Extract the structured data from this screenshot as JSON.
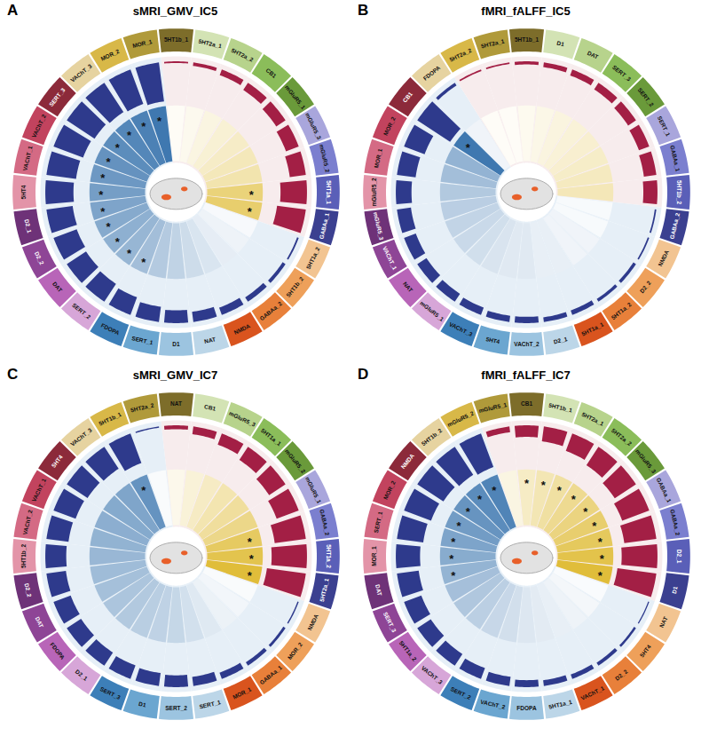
{
  "chart_data": [
    {
      "type": "radial_bar",
      "panel": "A",
      "title": "sMRI_GMV_IC5",
      "categories": [
        "5HT1b_1",
        "5HT2a_1",
        "5HT2a_2",
        "CB1",
        "mGluR5_1",
        "mGluR5_3",
        "mGluR5_2",
        "5HT1a_1",
        "GABAa_1",
        "5HT1a_2",
        "5HT1b_2",
        "GABAa_2",
        "NMDA",
        "NAT",
        "D1",
        "SERT_1",
        "FDOPA",
        "SERT_2",
        "DAT",
        "D2_2",
        "D2_1",
        "5HT4",
        "VAChT_1",
        "VAChT_2",
        "SERT_3",
        "VAChT_3",
        "MOR_2",
        "MOR_1"
      ],
      "values": [
        0.02,
        0.04,
        0.07,
        0.1,
        0.13,
        0.16,
        0.19,
        0.31,
        0.34,
        -0.02,
        -0.04,
        -0.06,
        -0.09,
        -0.12,
        -0.15,
        -0.18,
        -0.22,
        -0.25,
        -0.27,
        -0.29,
        -0.31,
        -0.33,
        -0.35,
        -0.37,
        -0.39,
        -0.41,
        -0.43,
        -0.46
      ],
      "significant": [
        false,
        false,
        false,
        false,
        false,
        false,
        false,
        true,
        true,
        false,
        false,
        false,
        false,
        false,
        false,
        false,
        true,
        true,
        true,
        true,
        true,
        true,
        true,
        true,
        true,
        true,
        true,
        true
      ],
      "significance_label": "*",
      "colors": [
        "#7d6d2a",
        "#d3e3b4",
        "#b7d38c",
        "#8bbd5a",
        "#6a9a3a",
        "#a9a6dc",
        "#7b7fcf",
        "#5a5fb8",
        "#3b4090",
        "#f2c491",
        "#eea05a",
        "#e8803a",
        "#d9541e",
        "#bcd6e8",
        "#9cc4e0",
        "#6ba6d0",
        "#3d7fb8",
        "#d7a6d8",
        "#b865b8",
        "#8e4596",
        "#6e3278",
        "#e394a8",
        "#d46a84",
        "#c2435e",
        "#8c2a3a",
        "#e6d3a0",
        "#d8b848",
        "#b09a3a"
      ]
    },
    {
      "type": "radial_bar",
      "panel": "B",
      "title": "fMRI_fALFF_IC5",
      "categories": [
        "5HT1b_1",
        "D1",
        "DAT",
        "SERT_3",
        "SERT_2",
        "SERT_1",
        "GABAa_1",
        "5HT1b_2",
        "GABAa_2",
        "NMDA",
        "D2_2",
        "5HT1a_2",
        "5HT1a_1",
        "D2_1",
        "VAChT_2",
        "5HT4",
        "VAChT_3",
        "mGluR5_1",
        "NAT",
        "VAChT_1",
        "mGluR5_3",
        "mGluR5_2",
        "MOR_1",
        "MOR_2",
        "CB1",
        "FDOPA",
        "5HT2a_2",
        "5HT2a_1"
      ],
      "values": [
        0.02,
        0.03,
        0.04,
        0.05,
        0.06,
        0.07,
        0.08,
        0.09,
        -0.01,
        -0.01,
        -0.02,
        -0.02,
        -0.03,
        -0.03,
        -0.04,
        -0.04,
        -0.05,
        -0.06,
        -0.07,
        -0.08,
        -0.09,
        -0.1,
        -0.12,
        -0.14,
        -0.25,
        -0.02,
        0.01,
        0.01
      ],
      "significant": [
        false,
        false,
        false,
        false,
        false,
        false,
        false,
        false,
        false,
        false,
        false,
        false,
        false,
        false,
        false,
        false,
        false,
        false,
        false,
        false,
        false,
        false,
        false,
        false,
        true,
        false,
        false,
        false
      ],
      "significance_label": "*",
      "colors": [
        "#7d6d2a",
        "#d3e3b4",
        "#b7d38c",
        "#8bbd5a",
        "#6a9a3a",
        "#a9a6dc",
        "#7b7fcf",
        "#5a5fb8",
        "#3b4090",
        "#f2c491",
        "#eea05a",
        "#e8803a",
        "#d9541e",
        "#bcd6e8",
        "#9cc4e0",
        "#6ba6d0",
        "#3d7fb8",
        "#d7a6d8",
        "#b865b8",
        "#8e4596",
        "#6e3278",
        "#e394a8",
        "#d46a84",
        "#c2435e",
        "#8c2a3a",
        "#e6d3a0",
        "#d8b848",
        "#b09a3a"
      ]
    },
    {
      "type": "radial_bar",
      "panel": "C",
      "title": "sMRI_GMV_IC7",
      "categories": [
        "NAT",
        "CB1",
        "mGluR5_3",
        "5HT1a_1",
        "mGluR5_2",
        "mGluR5_1",
        "GABAa_2",
        "5HT1a_2",
        "5HT2a_1",
        "NMDA",
        "MOR_2",
        "GABAa_1",
        "MOR_1",
        "SERT_1",
        "SERT_2",
        "D1",
        "SERT_3",
        "D2_1",
        "FDOPA",
        "DAT",
        "D2_2",
        "5HT1b_2",
        "VAChT_2",
        "VAChT_1",
        "5HT4",
        "VAChT_3",
        "5HT1b_1",
        "5HT2a_2"
      ],
      "values": [
        0.03,
        0.06,
        0.09,
        0.12,
        0.15,
        0.18,
        0.24,
        0.27,
        0.3,
        -0.01,
        -0.02,
        -0.03,
        -0.05,
        -0.07,
        -0.09,
        -0.1,
        -0.11,
        -0.12,
        -0.13,
        -0.14,
        -0.15,
        -0.16,
        -0.17,
        -0.18,
        -0.19,
        -0.2,
        -0.24,
        -0.01
      ],
      "significant": [
        false,
        false,
        false,
        false,
        false,
        false,
        true,
        true,
        true,
        false,
        false,
        false,
        false,
        false,
        false,
        false,
        false,
        false,
        false,
        false,
        false,
        false,
        false,
        false,
        false,
        false,
        true,
        false
      ],
      "significance_label": "*",
      "colors": [
        "#7d6d2a",
        "#d3e3b4",
        "#b7d38c",
        "#8bbd5a",
        "#6a9a3a",
        "#a9a6dc",
        "#7b7fcf",
        "#5a5fb8",
        "#3b4090",
        "#f2c491",
        "#eea05a",
        "#e8803a",
        "#d9541e",
        "#bcd6e8",
        "#9cc4e0",
        "#6ba6d0",
        "#3d7fb8",
        "#d7a6d8",
        "#b865b8",
        "#8e4596",
        "#6e3278",
        "#e394a8",
        "#d46a84",
        "#c2435e",
        "#8c2a3a",
        "#e6d3a0",
        "#d8b848",
        "#b09a3a"
      ]
    },
    {
      "type": "radial_bar",
      "panel": "D",
      "title": "fMRI_fALFF_IC7",
      "categories": [
        "CB1",
        "5HT1b_1",
        "5HT2a_1",
        "5HT2a_2",
        "mGluR5_3",
        "GABAa_1",
        "GABAa_2",
        "D2_1",
        "D1",
        "NAT",
        "5HT4",
        "D2_2",
        "VAChT_1",
        "5HT1a_1",
        "FDOPA",
        "VAChT_2",
        "SERT_2",
        "VAChT_3",
        "5HT1a_2",
        "SERT_3",
        "DAT",
        "MOR_1",
        "SERT_1",
        "MOR_2",
        "NMDA",
        "5HT1b_2",
        "mGluR5_2",
        "mGluR5_1"
      ],
      "values": [
        0.1,
        0.13,
        0.16,
        0.19,
        0.22,
        0.25,
        0.28,
        0.31,
        0.34,
        -0.01,
        -0.02,
        -0.03,
        -0.04,
        -0.05,
        -0.06,
        -0.08,
        -0.1,
        -0.12,
        -0.14,
        -0.16,
        -0.19,
        -0.21,
        -0.23,
        -0.25,
        -0.27,
        -0.29,
        -0.31,
        0.05
      ],
      "significant": [
        true,
        true,
        true,
        true,
        true,
        true,
        true,
        true,
        true,
        false,
        false,
        false,
        false,
        false,
        false,
        false,
        false,
        false,
        false,
        false,
        true,
        true,
        true,
        true,
        true,
        true,
        true,
        false
      ],
      "significance_label": "*",
      "colors": [
        "#7d6d2a",
        "#d3e3b4",
        "#b7d38c",
        "#8bbd5a",
        "#6a9a3a",
        "#a9a6dc",
        "#7b7fcf",
        "#5a5fb8",
        "#3b4090",
        "#f2c491",
        "#eea05a",
        "#e8803a",
        "#d9541e",
        "#bcd6e8",
        "#9cc4e0",
        "#6ba6d0",
        "#3d7fb8",
        "#d7a6d8",
        "#b865b8",
        "#8e4596",
        "#6e3278",
        "#e394a8",
        "#d46a84",
        "#c2435e",
        "#8c2a3a",
        "#e6d3a0",
        "#d8b848",
        "#b09a3a"
      ]
    }
  ]
}
